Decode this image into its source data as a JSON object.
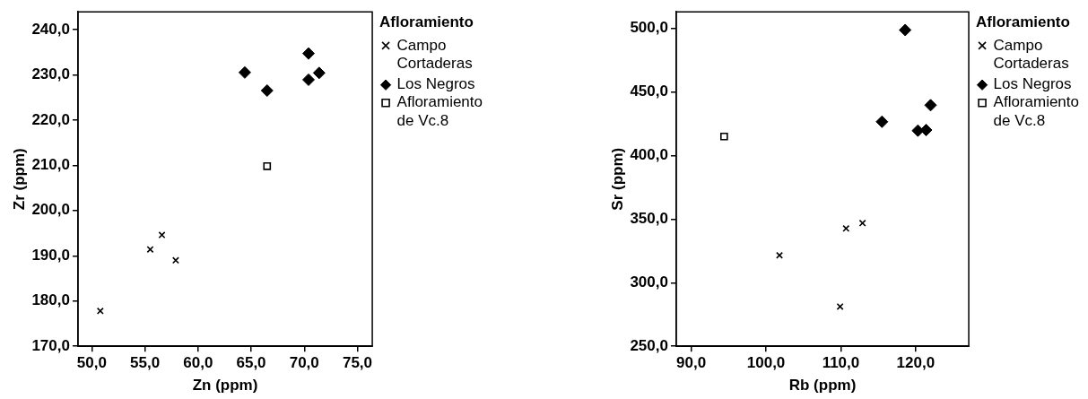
{
  "chart_data": [
    {
      "type": "scatter",
      "xlabel": "Zn (ppm)",
      "ylabel": "Zr (ppm)",
      "legend_title": "Afloramiento",
      "legend": "top right",
      "xlim": [
        48.7,
        76.4
      ],
      "ylim": [
        170,
        243.9
      ],
      "xticks": [
        {
          "value": 50,
          "label": "50,0"
        },
        {
          "value": 55,
          "label": "55,0"
        },
        {
          "value": 60,
          "label": "60,0"
        },
        {
          "value": 65,
          "label": "65,0"
        },
        {
          "value": 70,
          "label": "70,0"
        },
        {
          "value": 75,
          "label": "75,0"
        }
      ],
      "yticks": [
        {
          "value": 170,
          "label": "170,0"
        },
        {
          "value": 180,
          "label": "180,0"
        },
        {
          "value": 190,
          "label": "190,0"
        },
        {
          "value": 200,
          "label": "200,0"
        },
        {
          "value": 210,
          "label": "210,0"
        },
        {
          "value": 220,
          "label": "220,0"
        },
        {
          "value": 230,
          "label": "230,0"
        },
        {
          "value": 240,
          "label": "240,0"
        }
      ],
      "series": [
        {
          "name": "Campo Cortaderas",
          "color": "#000000",
          "marker": "cross",
          "x": [
            50.8,
            55.5,
            56.6,
            57.9
          ],
          "values": [
            177.8,
            191.4,
            194.6,
            189.0
          ]
        },
        {
          "name": "Los Negros",
          "color": "#000000",
          "marker": "diamond",
          "x": [
            64.4,
            66.5,
            70.4,
            70.4,
            71.4
          ],
          "values": [
            230.5,
            226.5,
            234.7,
            228.9,
            230.4
          ]
        },
        {
          "name": "Afloramiento de Vc.8",
          "color": "#000000",
          "marker": "square",
          "x": [
            66.5
          ],
          "values": [
            209.8
          ]
        }
      ]
    },
    {
      "type": "scatter",
      "xlabel": "Rb (ppm)",
      "ylabel": "Sr (ppm)",
      "legend_title": "Afloramiento",
      "legend": "top right",
      "xlim": [
        88.0,
        127.1
      ],
      "ylim": [
        250,
        512.9
      ],
      "xticks": [
        {
          "value": 90,
          "label": "90,0"
        },
        {
          "value": 100,
          "label": "100,0"
        },
        {
          "value": 110,
          "label": "110,0"
        },
        {
          "value": 120,
          "label": "120,0"
        }
      ],
      "yticks": [
        {
          "value": 250,
          "label": "250,0"
        },
        {
          "value": 300,
          "label": "300,0"
        },
        {
          "value": 350,
          "label": "350,0"
        },
        {
          "value": 400,
          "label": "400,0"
        },
        {
          "value": 450,
          "label": "450,0"
        },
        {
          "value": 500,
          "label": "500,0"
        }
      ],
      "series": [
        {
          "name": "Campo Cortaderas",
          "color": "#000000",
          "marker": "cross",
          "x": [
            101.8,
            110.7,
            112.9,
            109.9
          ],
          "values": [
            321.5,
            342.6,
            346.8,
            281.2
          ]
        },
        {
          "name": "Los Negros",
          "color": "#000000",
          "marker": "diamond",
          "x": [
            118.6,
            122.0,
            115.5,
            120.3,
            121.4
          ],
          "values": [
            498.6,
            439.5,
            426.5,
            419.5,
            420.0
          ]
        },
        {
          "name": "Afloramiento de Vc.8",
          "color": "#000000",
          "marker": "square",
          "x": [
            94.4
          ],
          "values": [
            414.9
          ]
        }
      ]
    }
  ]
}
